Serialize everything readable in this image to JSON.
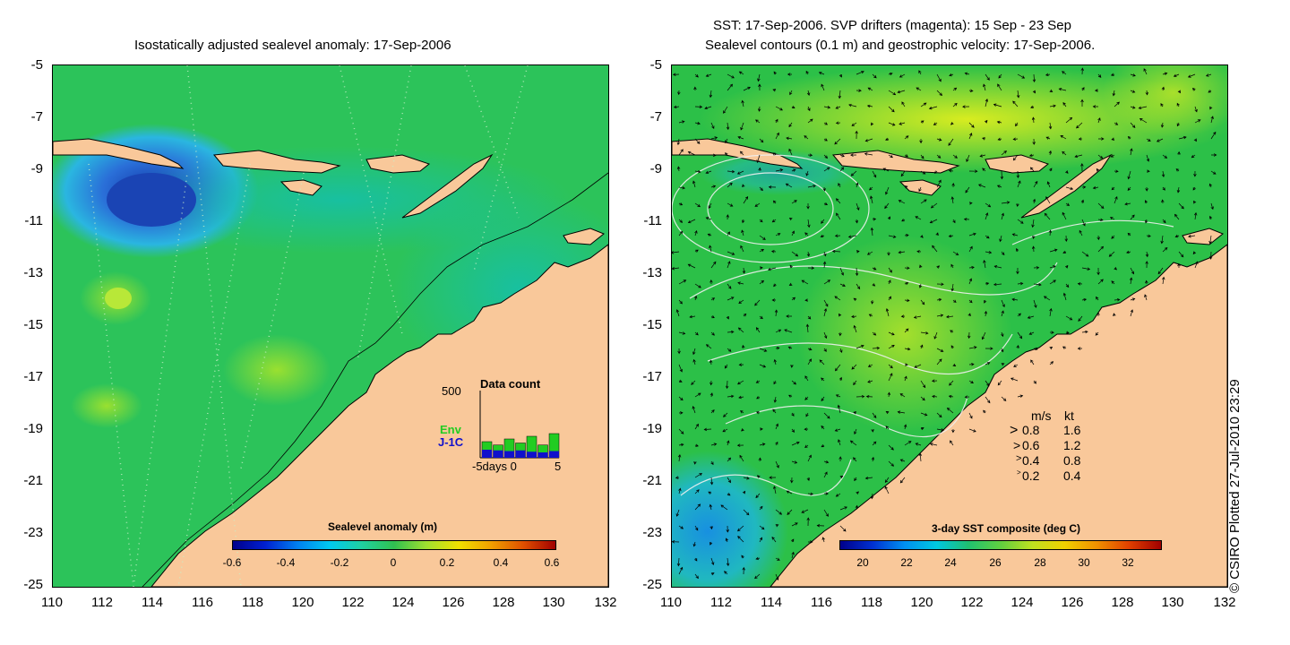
{
  "left": {
    "title": "Isostatically adjusted sealevel anomaly: 17-Sep-2006",
    "colorbar": {
      "title": "Sealevel anomaly (m)",
      "ticks": [
        "-0.6",
        "-0.4",
        "-0.2",
        "0",
        "0.2",
        "0.4",
        "0.6"
      ],
      "range": [
        -0.6,
        0.6
      ]
    },
    "inset": {
      "title": "Data count",
      "ymax_label": "500",
      "legend_env": "Env",
      "legend_j1c": "J-1C",
      "xlabel": "-5days 0",
      "xmax_label": "5",
      "env_counts": [
        120,
        95,
        140,
        110,
        160,
        95,
        180
      ],
      "j1c_counts": [
        60,
        55,
        50,
        55,
        45,
        40,
        50
      ],
      "count_max": 500,
      "env_color": "#22cc22",
      "j1c_color": "#1010cc"
    }
  },
  "right": {
    "title_line1": "SST: 17-Sep-2006. SVP drifters (magenta): 15 Sep - 23 Sep",
    "title_line2": "Sealevel contours (0.1 m) and geostrophic velocity: 17-Sep-2006.",
    "colorbar": {
      "title": "3-day SST composite (deg C)",
      "ticks": [
        "20",
        "22",
        "24",
        "26",
        "28",
        "30",
        "32"
      ],
      "range": [
        19,
        33.5
      ]
    },
    "velocity_legend": {
      "header_ms": "m/s",
      "header_kt": "kt",
      "rows": [
        {
          "ms": "0.8",
          "kt": "1.6"
        },
        {
          "ms": "0.6",
          "kt": "1.2"
        },
        {
          "ms": "0.4",
          "kt": "0.8"
        },
        {
          "ms": "0.2",
          "kt": "0.4"
        }
      ]
    }
  },
  "axes": {
    "y_labels": [
      "-5",
      "-7",
      "-9",
      "-11",
      "-13",
      "-15",
      "-17",
      "-19",
      "-21",
      "-23",
      "-25"
    ],
    "x_labels": [
      "110",
      "112",
      "114",
      "116",
      "118",
      "120",
      "122",
      "124",
      "126",
      "128",
      "130",
      "132"
    ],
    "lat_range": [
      -25,
      -5
    ],
    "lon_range": [
      110,
      132
    ]
  },
  "copyright": "© CSIRO Plotted 27-Jul-2010 23:29",
  "colors": {
    "land": "#f9c89a",
    "ocean_base": "#1fbe5a",
    "sst_warm": "#c8e820",
    "anomaly_low": "#1a3fb0"
  }
}
